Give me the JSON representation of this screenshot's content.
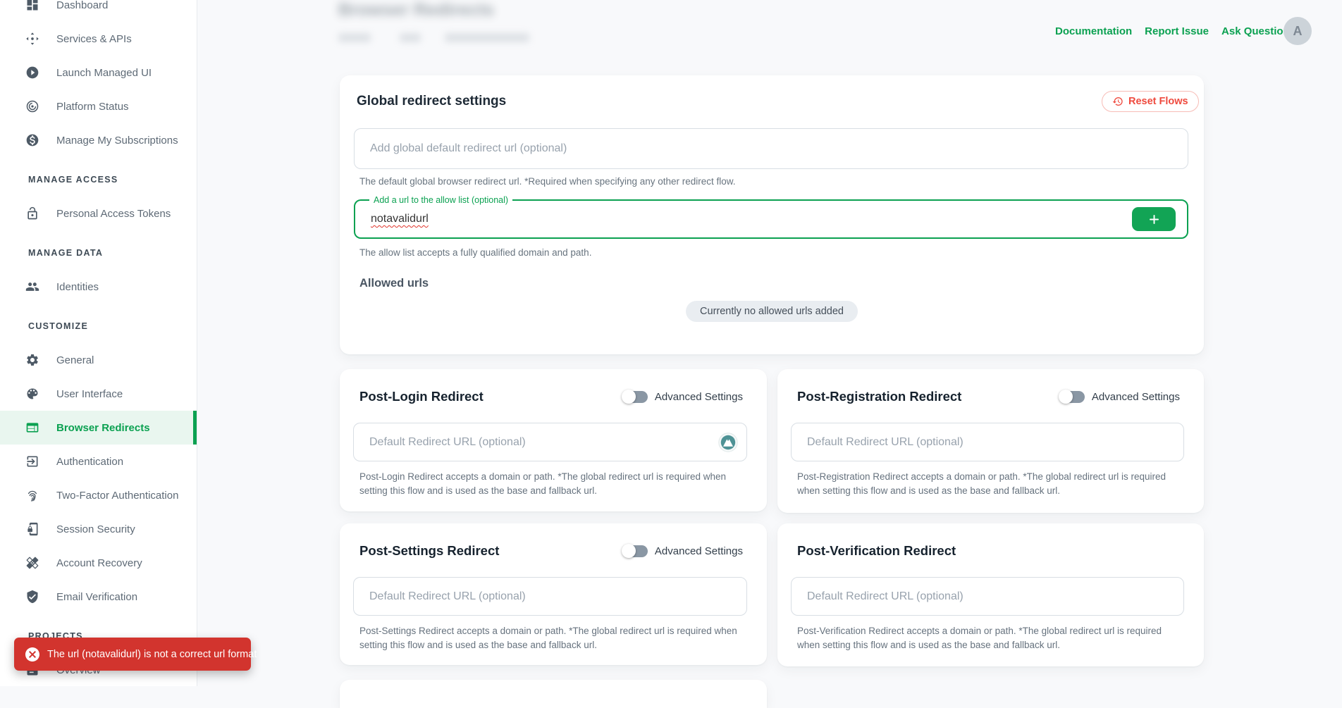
{
  "colors": {
    "accent_green": "#0ba151",
    "accent_green_bg": "#e9f6ef",
    "danger_red": "#ef4a3e",
    "toast_red": "#d2342e"
  },
  "header": {
    "page_title": "Browser Redirects",
    "links": [
      {
        "label": "Documentation"
      },
      {
        "label": "Report Issue"
      },
      {
        "label": "Ask Question"
      }
    ],
    "avatar_initial": "A"
  },
  "sidebar": {
    "items": [
      {
        "type": "item",
        "icon": "dashboard-icon",
        "label": "Dashboard"
      },
      {
        "type": "item",
        "icon": "services-apis-icon",
        "label": "Services & APIs"
      },
      {
        "type": "item",
        "icon": "launch-managed-ui-icon",
        "label": "Launch Managed UI"
      },
      {
        "type": "item",
        "icon": "platform-status-icon",
        "label": "Platform Status"
      },
      {
        "type": "item",
        "icon": "subscriptions-icon",
        "label": "Manage My Subscriptions"
      },
      {
        "type": "header",
        "label": "MANAGE ACCESS"
      },
      {
        "type": "item",
        "icon": "personal-access-tokens-icon",
        "label": "Personal Access Tokens"
      },
      {
        "type": "header",
        "label": "MANAGE DATA"
      },
      {
        "type": "item",
        "icon": "identities-icon",
        "label": "Identities"
      },
      {
        "type": "header",
        "label": "CUSTOMIZE"
      },
      {
        "type": "item",
        "icon": "general-icon",
        "label": "General"
      },
      {
        "type": "item",
        "icon": "user-interface-icon",
        "label": "User Interface"
      },
      {
        "type": "item",
        "icon": "browser-redirects-icon",
        "label": "Browser Redirects",
        "active": true
      },
      {
        "type": "item",
        "icon": "authentication-icon",
        "label": "Authentication"
      },
      {
        "type": "item",
        "icon": "two-factor-icon",
        "label": "Two-Factor Authentication"
      },
      {
        "type": "item",
        "icon": "session-security-icon",
        "label": "Session Security"
      },
      {
        "type": "item",
        "icon": "account-recovery-icon",
        "label": "Account Recovery"
      },
      {
        "type": "item",
        "icon": "email-verification-icon",
        "label": "Email Verification"
      },
      {
        "type": "header",
        "label": "PROJECTS"
      },
      {
        "type": "item",
        "icon": "overview-icon",
        "label": "Overview"
      }
    ]
  },
  "global_card": {
    "title": "Global redirect settings",
    "reset_button": "Reset Flows",
    "default_url_placeholder": "Add global default redirect url (optional)",
    "default_url_helper": "The default global browser redirect url. *Required when specifying any other redirect flow.",
    "allow_label": "Add a url to the allow list (optional)",
    "allow_value": "notavalidurl",
    "allow_helper": "The allow list accepts a fully qualified domain and path.",
    "allowed_urls_title": "Allowed urls",
    "empty_message": "Currently no allowed urls added"
  },
  "flow_cards": [
    {
      "title": "Post-Login Redirect",
      "has_toggle": true,
      "toggle_label": "Advanced Settings",
      "placeholder": "Default Redirect URL (optional)",
      "helper": "Post-Login Redirect accepts a domain or path. *The global redirect url is required when setting this flow and is used as the base and fallback url.",
      "has_extension_icon": true
    },
    {
      "title": "Post-Registration Redirect",
      "has_toggle": true,
      "toggle_label": "Advanced Settings",
      "placeholder": "Default Redirect URL (optional)",
      "helper": "Post-Registration Redirect accepts a domain or path. *The global redirect url is required when setting this flow and is used as the base and fallback url.",
      "has_extension_icon": false
    },
    {
      "title": "Post-Settings Redirect",
      "has_toggle": true,
      "toggle_label": "Advanced Settings",
      "placeholder": "Default Redirect URL (optional)",
      "helper": "Post-Settings Redirect accepts a domain or path. *The global redirect url is required when setting this flow and is used as the base and fallback url.",
      "has_extension_icon": false
    },
    {
      "title": "Post-Verification Redirect",
      "has_toggle": false,
      "toggle_label": "",
      "placeholder": "Default Redirect URL (optional)",
      "helper": "Post-Verification Redirect accepts a domain or path. *The global redirect url is required when setting this flow and is used as the base and fallback url.",
      "has_extension_icon": false
    }
  ],
  "toast": {
    "message": "The url (notavalidurl) is not a correct url format"
  }
}
